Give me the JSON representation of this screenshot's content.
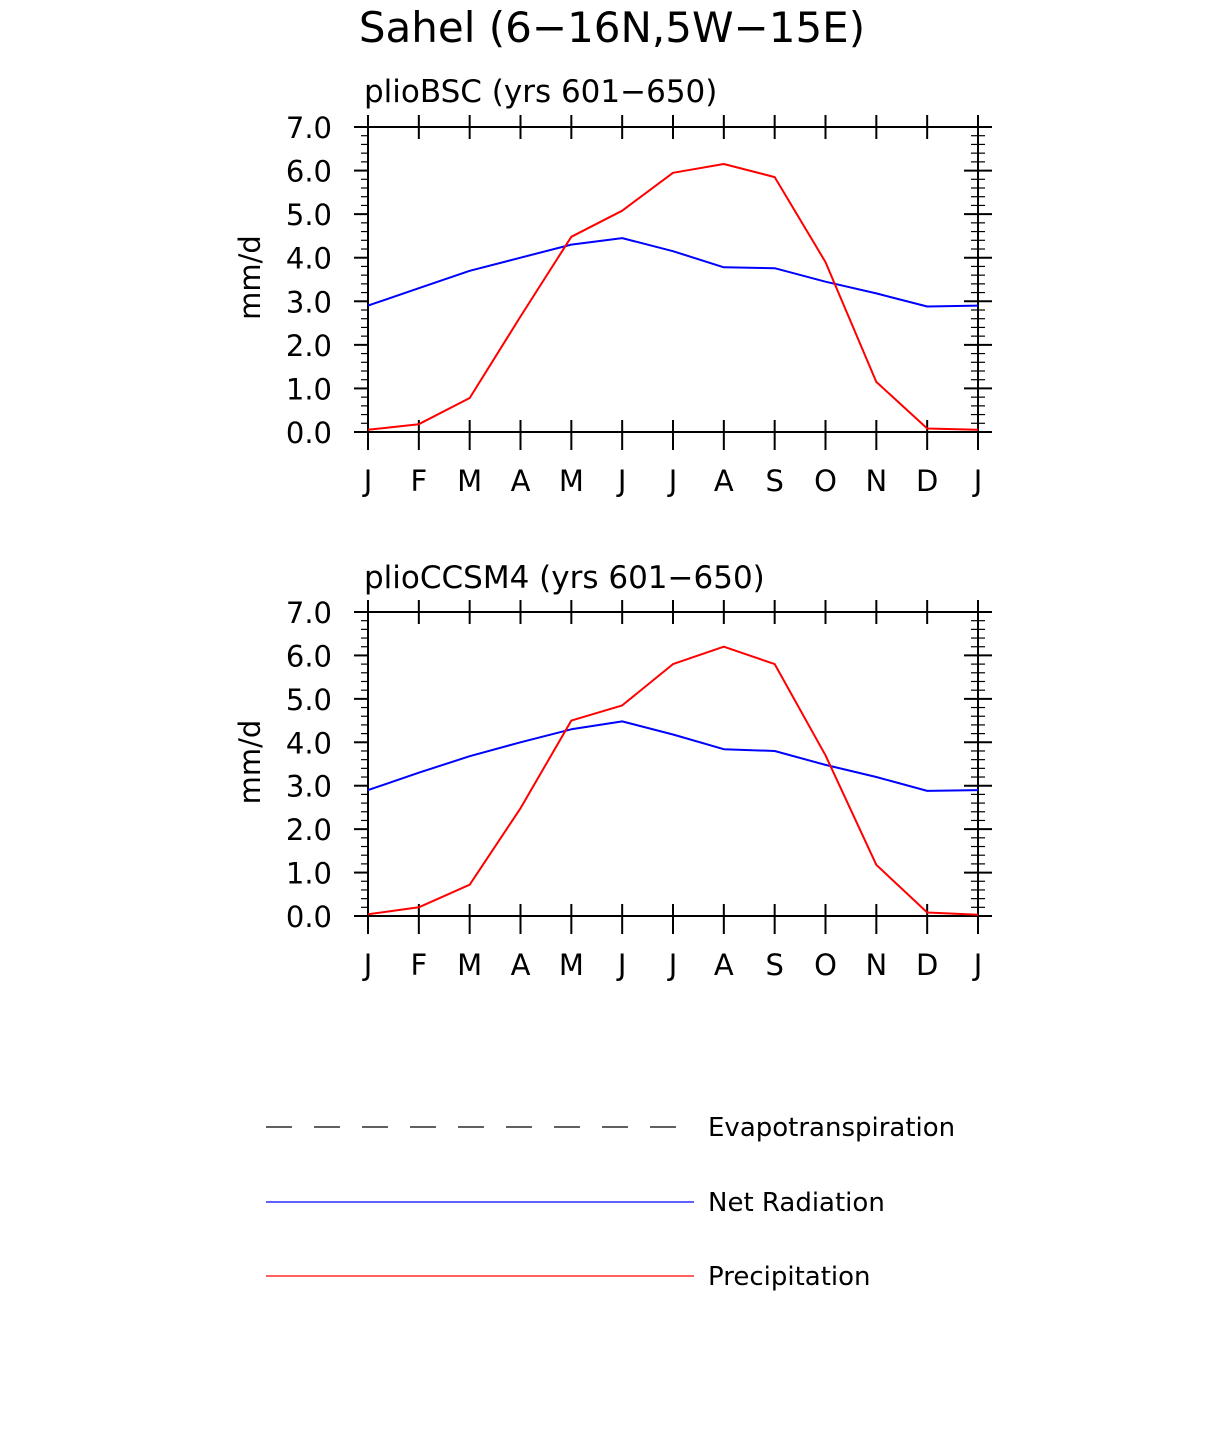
{
  "figure": {
    "title": "Sahel (6−16N,5W−15E)"
  },
  "legend": {
    "entries": [
      {
        "label": "Evapotranspiration",
        "style": "dashed",
        "color": "#000000"
      },
      {
        "label": "Net Radiation",
        "style": "solid",
        "color": "#0000ff"
      },
      {
        "label": "Precipitation",
        "style": "solid",
        "color": "#ff0000"
      }
    ]
  },
  "chart_data": [
    {
      "type": "line",
      "title": "plioBSC (yrs 601−650)",
      "ylabel": "mm/d",
      "xlabel": "",
      "categories": [
        "J",
        "F",
        "M",
        "A",
        "M",
        "J",
        "J",
        "A",
        "S",
        "O",
        "N",
        "D",
        "J"
      ],
      "ylim": [
        0,
        7
      ],
      "yticks": [
        "0.0",
        "1.0",
        "2.0",
        "3.0",
        "4.0",
        "5.0",
        "6.0",
        "7.0"
      ],
      "series": [
        {
          "name": "Net Radiation",
          "color": "#0000ff",
          "values": [
            2.9,
            3.3,
            3.7,
            4.0,
            4.3,
            4.45,
            4.15,
            3.78,
            3.76,
            3.45,
            3.18,
            2.88,
            2.9
          ]
        },
        {
          "name": "Precipitation",
          "color": "#ff0000",
          "values": [
            0.05,
            0.18,
            0.78,
            2.65,
            4.48,
            5.08,
            5.95,
            6.15,
            5.85,
            3.9,
            1.15,
            0.08,
            0.05
          ]
        }
      ]
    },
    {
      "type": "line",
      "title": "plioCCSM4 (yrs 601−650)",
      "ylabel": "mm/d",
      "xlabel": "",
      "categories": [
        "J",
        "F",
        "M",
        "A",
        "M",
        "J",
        "J",
        "A",
        "S",
        "O",
        "N",
        "D",
        "J"
      ],
      "ylim": [
        0,
        7
      ],
      "yticks": [
        "0.0",
        "1.0",
        "2.0",
        "3.0",
        "4.0",
        "5.0",
        "6.0",
        "7.0"
      ],
      "series": [
        {
          "name": "Net Radiation",
          "color": "#0000ff",
          "values": [
            2.9,
            3.3,
            3.68,
            4.0,
            4.3,
            4.48,
            4.18,
            3.84,
            3.8,
            3.48,
            3.2,
            2.88,
            2.9
          ]
        },
        {
          "name": "Precipitation",
          "color": "#ff0000",
          "values": [
            0.04,
            0.2,
            0.72,
            2.48,
            4.5,
            4.85,
            5.8,
            6.2,
            5.8,
            3.7,
            1.18,
            0.08,
            0.03
          ]
        }
      ]
    }
  ]
}
